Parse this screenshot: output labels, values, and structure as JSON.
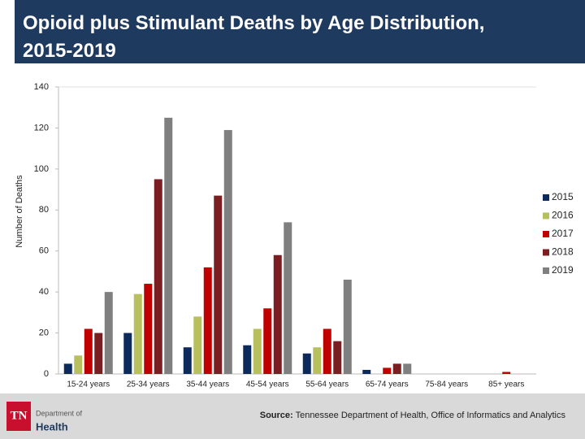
{
  "chart_data": {
    "type": "bar",
    "title": "Opioid plus Stimulant Deaths by Age Distribution, 2015-2019",
    "y_label": "Number of Deaths",
    "categories": [
      "15-24 years",
      "25-34 years",
      "35-44 years",
      "45-54 years",
      "55-64 years",
      "65-74 years",
      "75-84 years",
      "85+ years"
    ],
    "series": [
      {
        "name": "2015",
        "color": "#0d2a5c",
        "values": [
          5,
          20,
          13,
          14,
          10,
          2,
          0,
          0
        ]
      },
      {
        "name": "2016",
        "color": "#b8c05e",
        "values": [
          9,
          39,
          28,
          22,
          13,
          0,
          0,
          0
        ]
      },
      {
        "name": "2017",
        "color": "#c00000",
        "values": [
          22,
          44,
          52,
          32,
          22,
          3,
          0,
          1
        ]
      },
      {
        "name": "2018",
        "color": "#7b1e22",
        "values": [
          20,
          95,
          87,
          58,
          16,
          5,
          0,
          0
        ]
      },
      {
        "name": "2019",
        "color": "#7f7f7f",
        "values": [
          40,
          125,
          119,
          74,
          46,
          5,
          0,
          0
        ]
      }
    ],
    "ylim": [
      0,
      140
    ],
    "yticks": [
      0,
      20,
      40,
      60,
      80,
      100,
      120,
      140
    ],
    "grid": false,
    "legend": "right"
  },
  "footer": {
    "source_label": "Source:",
    "source_text": "Tennessee Department of Health, Office of Informatics and Analytics",
    "logo_mark": "TN",
    "logo_line1": "Department of",
    "logo_line2": "Health"
  }
}
